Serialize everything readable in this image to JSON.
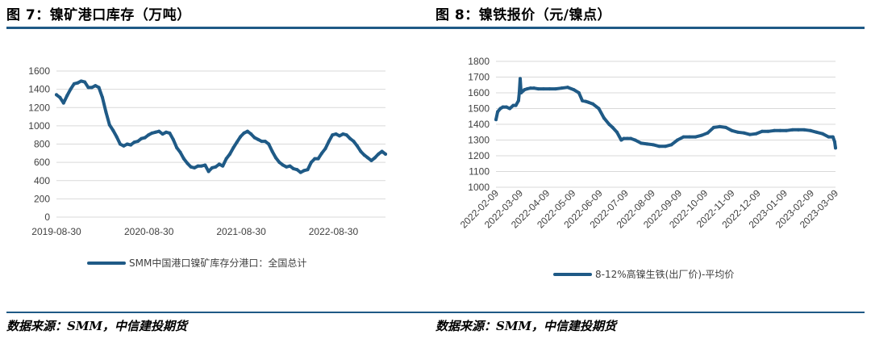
{
  "left_panel": {
    "title": "图 7：镍矿港口库存（万吨）",
    "source": "数据来源：SMM，中信建投期货"
  },
  "right_panel": {
    "title": "图 8：镍铁报价（元/镍点）",
    "source": "数据来源：SMM，中信建投期货"
  },
  "colors": {
    "line": "#1f5a86",
    "rule": "#1f5a86",
    "grid": "#d9d9d9",
    "text": "#404040"
  },
  "chart_data": [
    {
      "type": "line",
      "title": "",
      "xlabel": "",
      "ylabel": "",
      "ylim": [
        0,
        1600
      ],
      "y_ticks": [
        0,
        200,
        400,
        600,
        800,
        1000,
        1200,
        1400,
        1600
      ],
      "x_tick_labels": [
        "2019-08-30",
        "2020-08-30",
        "2021-08-30",
        "2022-08-30"
      ],
      "x_tick_dates": [
        "2019-08-30",
        "2020-08-30",
        "2021-08-30",
        "2022-08-30"
      ],
      "xlim": [
        "2019-08-30",
        "2023-03-24"
      ],
      "grid": "horizontal",
      "legend_position": "bottom",
      "series": [
        {
          "name": "SMM中国港口镍矿库存分港口：全国总计",
          "x": [
            "2019-08-30",
            "2019-09-13",
            "2019-09-27",
            "2019-10-11",
            "2019-10-25",
            "2019-11-08",
            "2019-11-22",
            "2019-12-06",
            "2019-12-20",
            "2020-01-03",
            "2020-01-17",
            "2020-01-31",
            "2020-02-14",
            "2020-02-28",
            "2020-03-13",
            "2020-03-27",
            "2020-04-10",
            "2020-04-24",
            "2020-05-08",
            "2020-05-22",
            "2020-06-05",
            "2020-06-19",
            "2020-07-03",
            "2020-07-17",
            "2020-07-31",
            "2020-08-14",
            "2020-08-28",
            "2020-09-11",
            "2020-09-25",
            "2020-10-09",
            "2020-10-23",
            "2020-11-06",
            "2020-11-20",
            "2020-12-04",
            "2020-12-18",
            "2021-01-01",
            "2021-01-15",
            "2021-01-29",
            "2021-02-12",
            "2021-02-26",
            "2021-03-12",
            "2021-03-26",
            "2021-04-09",
            "2021-04-23",
            "2021-05-07",
            "2021-05-21",
            "2021-06-04",
            "2021-06-18",
            "2021-07-02",
            "2021-07-16",
            "2021-07-30",
            "2021-08-13",
            "2021-08-27",
            "2021-09-10",
            "2021-09-24",
            "2021-10-08",
            "2021-10-22",
            "2021-11-05",
            "2021-11-19",
            "2021-12-03",
            "2021-12-17",
            "2021-12-31",
            "2022-01-14",
            "2022-01-28",
            "2022-02-11",
            "2022-02-25",
            "2022-03-11",
            "2022-03-25",
            "2022-04-08",
            "2022-04-22",
            "2022-05-06",
            "2022-05-20",
            "2022-06-03",
            "2022-06-17",
            "2022-07-01",
            "2022-07-15",
            "2022-07-29",
            "2022-08-12",
            "2022-08-26",
            "2022-09-09",
            "2022-09-23",
            "2022-10-07",
            "2022-10-21",
            "2022-11-04",
            "2022-11-18",
            "2022-12-02",
            "2022-12-16",
            "2022-12-30",
            "2023-01-13",
            "2023-01-27",
            "2023-02-10",
            "2023-02-24",
            "2023-03-10",
            "2023-03-24"
          ],
          "values": [
            1340,
            1310,
            1250,
            1330,
            1400,
            1460,
            1470,
            1490,
            1480,
            1420,
            1420,
            1440,
            1420,
            1310,
            1150,
            1010,
            950,
            880,
            800,
            780,
            800,
            790,
            820,
            830,
            860,
            870,
            900,
            920,
            930,
            940,
            910,
            930,
            920,
            850,
            760,
            710,
            640,
            590,
            550,
            540,
            560,
            560,
            570,
            500,
            540,
            550,
            580,
            560,
            640,
            690,
            760,
            820,
            880,
            920,
            940,
            910,
            870,
            850,
            830,
            830,
            800,
            720,
            650,
            600,
            570,
            550,
            560,
            530,
            520,
            490,
            510,
            520,
            600,
            640,
            640,
            700,
            750,
            830,
            900,
            910,
            890,
            910,
            900,
            860,
            830,
            780,
            720,
            680,
            650,
            620,
            650,
            690,
            720,
            690
          ]
        }
      ]
    },
    {
      "type": "line",
      "title": "",
      "xlabel": "",
      "ylabel": "",
      "ylim": [
        1000,
        1800
      ],
      "y_ticks": [
        1000,
        1100,
        1200,
        1300,
        1400,
        1500,
        1600,
        1700,
        1800
      ],
      "x_tick_labels": [
        "2022-02-09",
        "2022-03-09",
        "2022-04-09",
        "2022-05-09",
        "2022-06-09",
        "2022-07-09",
        "2022-08-09",
        "2022-09-09",
        "2022-10-09",
        "2022-11-09",
        "2022-12-09",
        "2023-01-09",
        "2023-02-09",
        "2023-03-09"
      ],
      "x_tick_dates": [
        "2022-02-09",
        "2022-03-09",
        "2022-04-09",
        "2022-05-09",
        "2022-06-09",
        "2022-07-09",
        "2022-08-09",
        "2022-09-09",
        "2022-10-09",
        "2022-11-09",
        "2022-12-09",
        "2023-01-09",
        "2023-02-09",
        "2023-03-09"
      ],
      "xlim": [
        "2022-02-09",
        "2023-03-09"
      ],
      "grid": "horizontal",
      "legend_position": "bottom",
      "series": [
        {
          "name": "8-12%高镍生铁(出厂价)-平均价",
          "x": [
            "2022-02-09",
            "2022-02-11",
            "2022-02-14",
            "2022-02-17",
            "2022-02-21",
            "2022-02-25",
            "2022-03-01",
            "2022-03-04",
            "2022-03-07",
            "2022-03-08",
            "2022-03-09",
            "2022-03-10",
            "2022-03-14",
            "2022-03-17",
            "2022-03-21",
            "2022-03-25",
            "2022-03-30",
            "2022-04-05",
            "2022-04-12",
            "2022-04-19",
            "2022-04-26",
            "2022-05-03",
            "2022-05-10",
            "2022-05-16",
            "2022-05-20",
            "2022-05-24",
            "2022-05-27",
            "2022-06-01",
            "2022-06-08",
            "2022-06-14",
            "2022-06-20",
            "2022-06-24",
            "2022-06-29",
            "2022-07-04",
            "2022-07-07",
            "2022-07-11",
            "2022-07-15",
            "2022-07-20",
            "2022-07-27",
            "2022-08-03",
            "2022-08-10",
            "2022-08-17",
            "2022-08-24",
            "2022-08-31",
            "2022-09-07",
            "2022-09-14",
            "2022-09-21",
            "2022-09-28",
            "2022-10-05",
            "2022-10-12",
            "2022-10-19",
            "2022-10-26",
            "2022-11-02",
            "2022-11-09",
            "2022-11-16",
            "2022-11-23",
            "2022-11-30",
            "2022-12-07",
            "2022-12-14",
            "2022-12-21",
            "2022-12-28",
            "2023-01-04",
            "2023-01-11",
            "2023-01-18",
            "2023-01-25",
            "2023-02-01",
            "2023-02-08",
            "2023-02-15",
            "2023-02-22",
            "2023-03-01",
            "2023-03-06",
            "2023-03-08",
            "2023-03-09"
          ],
          "values": [
            1430,
            1480,
            1500,
            1510,
            1510,
            1500,
            1520,
            1520,
            1550,
            1600,
            1690,
            1600,
            1620,
            1625,
            1630,
            1630,
            1625,
            1625,
            1625,
            1625,
            1630,
            1635,
            1620,
            1600,
            1550,
            1545,
            1540,
            1530,
            1500,
            1440,
            1400,
            1380,
            1350,
            1300,
            1310,
            1310,
            1310,
            1300,
            1280,
            1275,
            1270,
            1260,
            1260,
            1270,
            1300,
            1320,
            1320,
            1320,
            1330,
            1345,
            1380,
            1385,
            1380,
            1360,
            1350,
            1345,
            1335,
            1340,
            1355,
            1355,
            1360,
            1360,
            1360,
            1365,
            1365,
            1365,
            1360,
            1350,
            1340,
            1320,
            1320,
            1290,
            1250
          ]
        }
      ]
    }
  ]
}
